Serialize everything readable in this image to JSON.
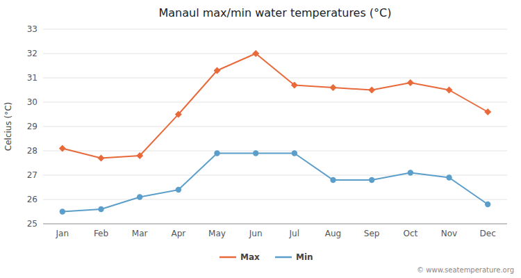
{
  "chart_data": {
    "type": "line",
    "title": "Manaul max/min water temperatures (°C)",
    "ylabel": "Celcius (°C)",
    "categories": [
      "Jan",
      "Feb",
      "Mar",
      "Apr",
      "May",
      "Jun",
      "Jul",
      "Aug",
      "Sep",
      "Oct",
      "Nov",
      "Dec"
    ],
    "series": [
      {
        "name": "Max",
        "color": "#e8693a",
        "marker": "diamond",
        "line_style": "solid",
        "values": [
          28.1,
          27.7,
          27.8,
          29.5,
          31.3,
          32.0,
          30.7,
          30.6,
          30.5,
          30.8,
          30.5,
          29.6
        ]
      },
      {
        "name": "Min",
        "color": "#5b9ec9",
        "marker": "circle",
        "line_style": "solid",
        "values": [
          25.5,
          25.6,
          26.1,
          26.4,
          27.9,
          27.9,
          27.9,
          26.8,
          26.8,
          27.1,
          26.9,
          25.8
        ]
      }
    ],
    "ylim": [
      25,
      33
    ],
    "yticks": [
      25,
      26,
      27,
      28,
      29,
      30,
      31,
      32,
      33
    ],
    "grid": true,
    "legend": "bottom",
    "annotations": [
      "© www.seatemperature.org"
    ]
  }
}
